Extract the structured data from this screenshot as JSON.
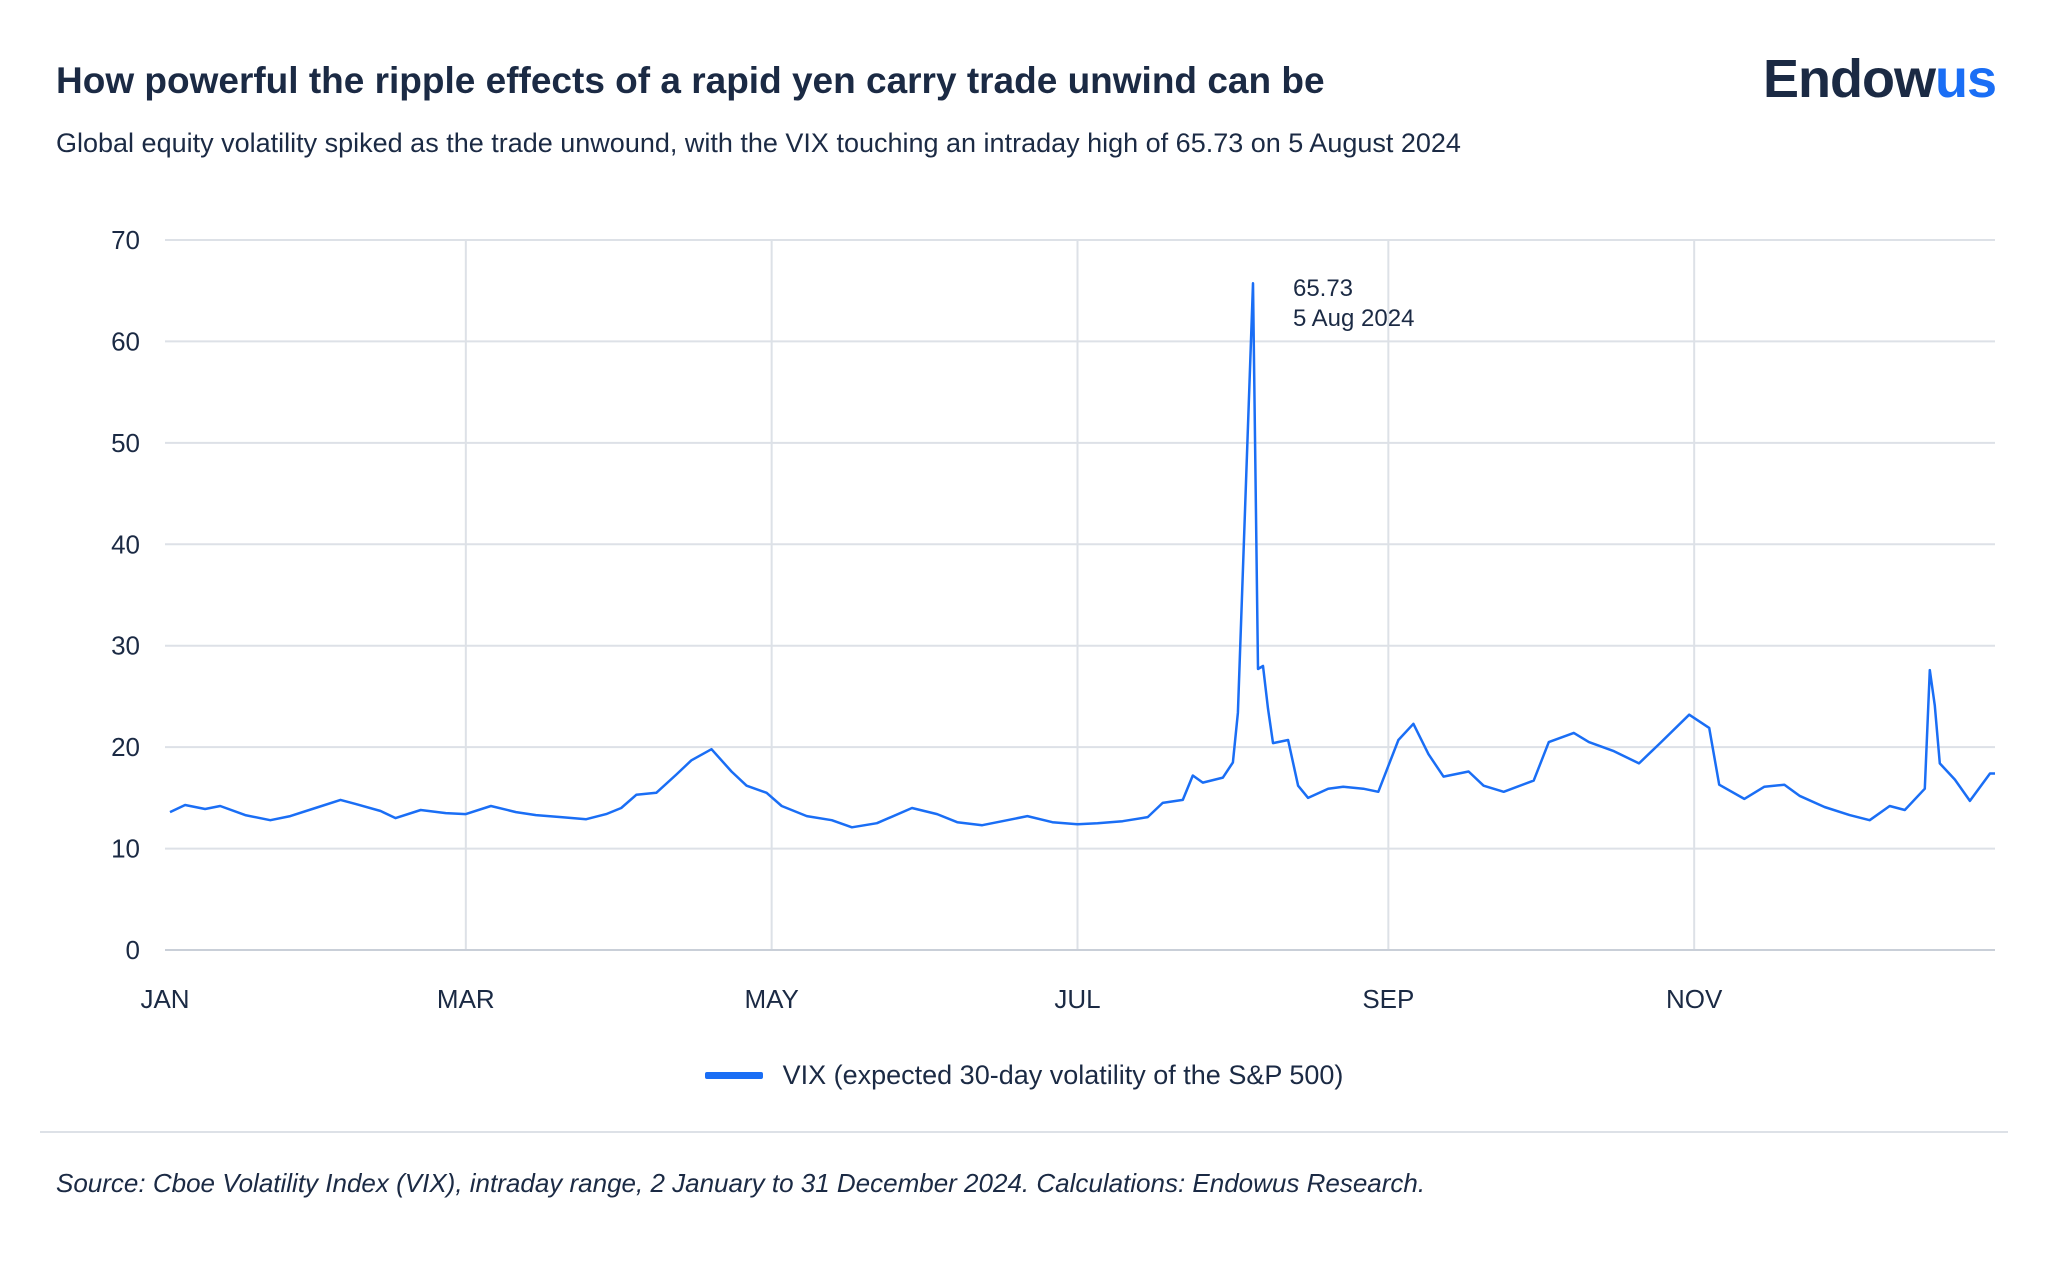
{
  "header": {
    "title": "How powerful the ripple effects of a rapid yen carry trade unwind can be",
    "subtitle": "Global equity volatility spiked as the trade unwound, with the VIX touching an intraday high of 65.73 on 5 August 2024",
    "logo_part1": "Endow",
    "logo_part2": "us"
  },
  "colors": {
    "line": "#1a6ef5",
    "grid": "#dde1e7",
    "text": "#1b2a44"
  },
  "chart_data": {
    "type": "line",
    "title": "How powerful the ripple effects of a rapid yen carry trade unwind can be",
    "ylim": [
      0,
      70
    ],
    "yticks": [
      0,
      10,
      20,
      30,
      40,
      50,
      60,
      70
    ],
    "xticks": [
      {
        "label": "JAN",
        "date": "2024-01-01"
      },
      {
        "label": "MAR",
        "date": "2024-03-01"
      },
      {
        "label": "MAY",
        "date": "2024-05-01"
      },
      {
        "label": "JUL",
        "date": "2024-07-01"
      },
      {
        "label": "SEP",
        "date": "2024-09-01"
      },
      {
        "label": "NOV",
        "date": "2024-11-01"
      }
    ],
    "xlim": [
      "2024-01-01",
      "2024-12-31"
    ],
    "grid": true,
    "legend_position": "bottom-center",
    "annotation": {
      "date": "2024-08-05",
      "value_label": "65.73",
      "date_label": "5 Aug 2024"
    },
    "series": [
      {
        "name": "VIX (expected 30-day volatility of the S&P 500)",
        "points": [
          [
            "2024-01-02",
            13.6
          ],
          [
            "2024-01-05",
            14.3
          ],
          [
            "2024-01-09",
            13.9
          ],
          [
            "2024-01-12",
            14.2
          ],
          [
            "2024-01-17",
            13.3
          ],
          [
            "2024-01-22",
            12.8
          ],
          [
            "2024-01-26",
            13.2
          ],
          [
            "2024-01-31",
            14.0
          ],
          [
            "2024-02-05",
            14.8
          ],
          [
            "2024-02-08",
            14.4
          ],
          [
            "2024-02-13",
            13.7
          ],
          [
            "2024-02-16",
            13.0
          ],
          [
            "2024-02-21",
            13.8
          ],
          [
            "2024-02-26",
            13.5
          ],
          [
            "2024-03-01",
            13.4
          ],
          [
            "2024-03-06",
            14.2
          ],
          [
            "2024-03-11",
            13.6
          ],
          [
            "2024-03-15",
            13.3
          ],
          [
            "2024-03-20",
            13.1
          ],
          [
            "2024-03-25",
            12.9
          ],
          [
            "2024-03-29",
            13.4
          ],
          [
            "2024-04-01",
            14.0
          ],
          [
            "2024-04-04",
            15.3
          ],
          [
            "2024-04-08",
            15.5
          ],
          [
            "2024-04-12",
            17.3
          ],
          [
            "2024-04-15",
            18.7
          ],
          [
            "2024-04-19",
            19.8
          ],
          [
            "2024-04-23",
            17.6
          ],
          [
            "2024-04-26",
            16.2
          ],
          [
            "2024-04-30",
            15.5
          ],
          [
            "2024-05-03",
            14.2
          ],
          [
            "2024-05-08",
            13.2
          ],
          [
            "2024-05-13",
            12.8
          ],
          [
            "2024-05-17",
            12.1
          ],
          [
            "2024-05-22",
            12.5
          ],
          [
            "2024-05-29",
            14.0
          ],
          [
            "2024-06-03",
            13.4
          ],
          [
            "2024-06-07",
            12.6
          ],
          [
            "2024-06-12",
            12.3
          ],
          [
            "2024-06-17",
            12.8
          ],
          [
            "2024-06-21",
            13.2
          ],
          [
            "2024-06-26",
            12.6
          ],
          [
            "2024-07-01",
            12.4
          ],
          [
            "2024-07-05",
            12.5
          ],
          [
            "2024-07-10",
            12.7
          ],
          [
            "2024-07-15",
            13.1
          ],
          [
            "2024-07-18",
            14.5
          ],
          [
            "2024-07-22",
            14.8
          ],
          [
            "2024-07-24",
            17.2
          ],
          [
            "2024-07-26",
            16.5
          ],
          [
            "2024-07-30",
            17.0
          ],
          [
            "2024-08-01",
            18.5
          ],
          [
            "2024-08-02",
            23.4
          ],
          [
            "2024-08-05",
            65.73
          ],
          [
            "2024-08-06",
            27.7
          ],
          [
            "2024-08-07",
            28.0
          ],
          [
            "2024-08-08",
            23.8
          ],
          [
            "2024-08-09",
            20.4
          ],
          [
            "2024-08-12",
            20.7
          ],
          [
            "2024-08-14",
            16.2
          ],
          [
            "2024-08-16",
            15.0
          ],
          [
            "2024-08-20",
            15.9
          ],
          [
            "2024-08-23",
            16.1
          ],
          [
            "2024-08-27",
            15.9
          ],
          [
            "2024-08-30",
            15.6
          ],
          [
            "2024-09-03",
            20.7
          ],
          [
            "2024-09-06",
            22.3
          ],
          [
            "2024-09-09",
            19.3
          ],
          [
            "2024-09-12",
            17.1
          ],
          [
            "2024-09-17",
            17.6
          ],
          [
            "2024-09-20",
            16.2
          ],
          [
            "2024-09-24",
            15.6
          ],
          [
            "2024-09-30",
            16.7
          ],
          [
            "2024-10-03",
            20.5
          ],
          [
            "2024-10-08",
            21.4
          ],
          [
            "2024-10-11",
            20.5
          ],
          [
            "2024-10-16",
            19.6
          ],
          [
            "2024-10-21",
            18.4
          ],
          [
            "2024-10-25",
            20.3
          ],
          [
            "2024-10-31",
            23.2
          ],
          [
            "2024-11-04",
            21.9
          ],
          [
            "2024-11-06",
            16.3
          ],
          [
            "2024-11-11",
            14.9
          ],
          [
            "2024-11-15",
            16.1
          ],
          [
            "2024-11-19",
            16.3
          ],
          [
            "2024-11-22",
            15.2
          ],
          [
            "2024-11-27",
            14.1
          ],
          [
            "2024-12-02",
            13.3
          ],
          [
            "2024-12-06",
            12.8
          ],
          [
            "2024-12-10",
            14.2
          ],
          [
            "2024-12-13",
            13.8
          ],
          [
            "2024-12-17",
            15.9
          ],
          [
            "2024-12-18",
            27.6
          ],
          [
            "2024-12-19",
            24.1
          ],
          [
            "2024-12-20",
            18.4
          ],
          [
            "2024-12-23",
            16.8
          ],
          [
            "2024-12-26",
            14.7
          ],
          [
            "2024-12-30",
            17.4
          ],
          [
            "2024-12-31",
            17.4
          ]
        ]
      }
    ]
  },
  "footer": {
    "source": "Source: Cboe Volatility Index (VIX), intraday range, 2 January to 31 December 2024. Calculations: Endowus Research."
  }
}
